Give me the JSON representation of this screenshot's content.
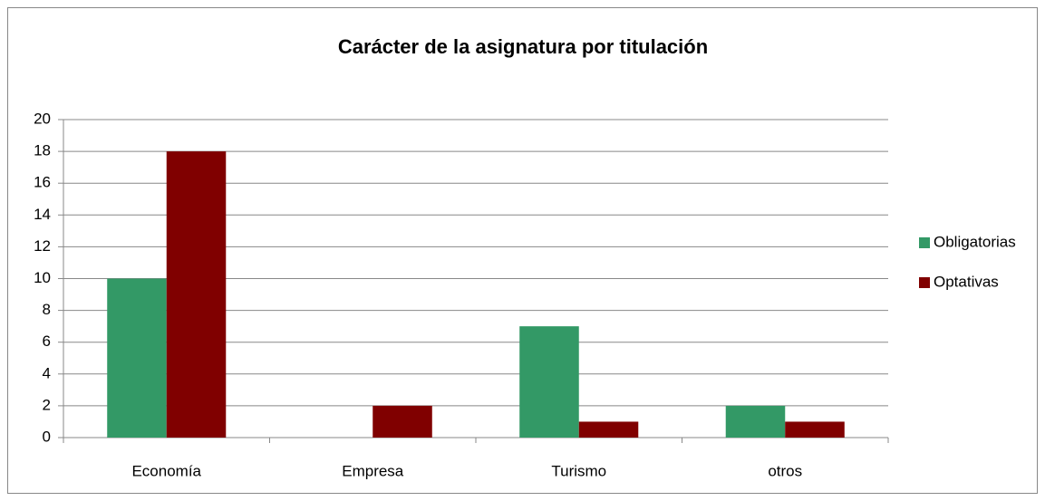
{
  "chart_data": {
    "type": "bar",
    "title": "Carácter de la asignatura por titulación",
    "categories": [
      "Economía",
      "Empresa",
      "Turismo",
      "otros"
    ],
    "series": [
      {
        "name": "Obligatorias",
        "color": "#339966",
        "values": [
          10,
          0,
          7,
          2
        ]
      },
      {
        "name": "Optativas",
        "color": "#800000",
        "values": [
          18,
          2,
          1,
          1
        ]
      }
    ],
    "ylim": [
      0,
      20
    ],
    "yticks": [
      0,
      2,
      4,
      6,
      8,
      10,
      12,
      14,
      16,
      18,
      20
    ],
    "grid": true,
    "legend": "right"
  }
}
